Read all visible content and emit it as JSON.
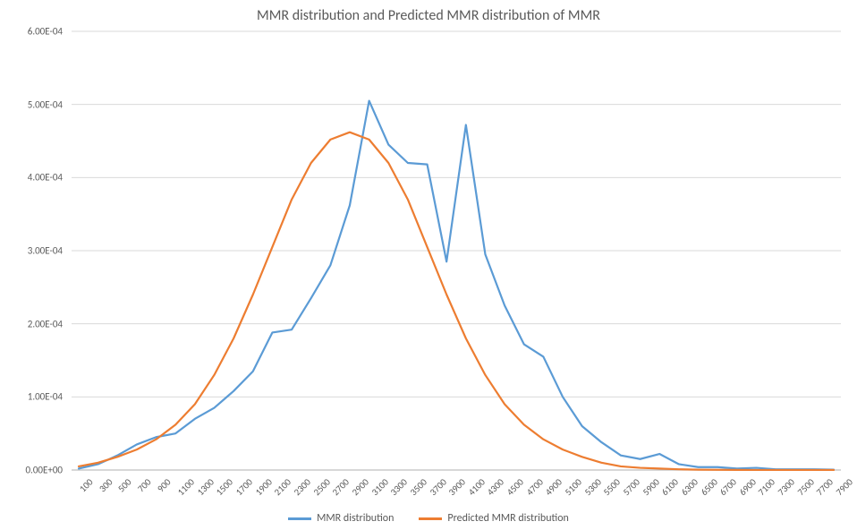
{
  "chart": {
    "type": "line",
    "title": "MMR distribution and Predicted MMR distribution of MMR",
    "title_fontsize": 16,
    "title_color": "#595959",
    "background_color": "#ffffff",
    "grid_color": "#d9d9d9",
    "axis_line_color": "#bfbfbf",
    "tick_label_color": "#595959",
    "tick_fontsize": 11,
    "line_width": 2.2,
    "x_categories": [
      "100",
      "300",
      "500",
      "700",
      "900",
      "1100",
      "1300",
      "1500",
      "1700",
      "1900",
      "2100",
      "2300",
      "2500",
      "2700",
      "2900",
      "3100",
      "3300",
      "3500",
      "3700",
      "3900",
      "4100",
      "4300",
      "4500",
      "4700",
      "4900",
      "5100",
      "5300",
      "5500",
      "5700",
      "5900",
      "6100",
      "6300",
      "6500",
      "6700",
      "6900",
      "7100",
      "7300",
      "7500",
      "7700",
      "7900"
    ],
    "ylim": [
      0,
      0.0006
    ],
    "ytick_step": 0.0001,
    "y_tick_labels": [
      "0.00E+00",
      "1.00E-04",
      "2.00E-04",
      "3.00E-04",
      "4.00E-04",
      "5.00E-04",
      "6.00E-04"
    ],
    "x_label_rotation_deg": -45,
    "series": [
      {
        "name": "MMR distribution",
        "color": "#5b9bd5",
        "values": [
          2e-06,
          8e-06,
          2e-05,
          3.5e-05,
          4.5e-05,
          5e-05,
          7e-05,
          8.5e-05,
          0.000108,
          0.000135,
          0.000188,
          0.000192,
          0.000235,
          0.00028,
          0.000362,
          0.000505,
          0.000445,
          0.00042,
          0.000418,
          0.000285,
          0.000472,
          0.000295,
          0.000225,
          0.000172,
          0.000155,
          0.0001,
          6e-05,
          3.8e-05,
          2e-05,
          1.5e-05,
          2.2e-05,
          8e-06,
          4e-06,
          4e-06,
          2e-06,
          3e-06,
          1e-06,
          1e-06,
          1e-06,
          5e-07
        ]
      },
      {
        "name": "Predicted MMR distribution",
        "color": "#ed7d31",
        "values": [
          5e-06,
          1e-05,
          1.8e-05,
          2.8e-05,
          4.2e-05,
          6.2e-05,
          9e-05,
          0.00013,
          0.00018,
          0.00024,
          0.000305,
          0.00037,
          0.00042,
          0.000452,
          0.000462,
          0.000452,
          0.00042,
          0.00037,
          0.000305,
          0.00024,
          0.00018,
          0.00013,
          9e-05,
          6.2e-05,
          4.2e-05,
          2.8e-05,
          1.8e-05,
          1e-05,
          5e-06,
          3e-06,
          2e-06,
          1e-06,
          5e-07,
          3e-07,
          2e-07,
          1e-07,
          1e-07,
          5e-08,
          5e-08,
          5e-08
        ]
      }
    ],
    "legend": {
      "position": "bottom",
      "fontsize": 12
    }
  }
}
